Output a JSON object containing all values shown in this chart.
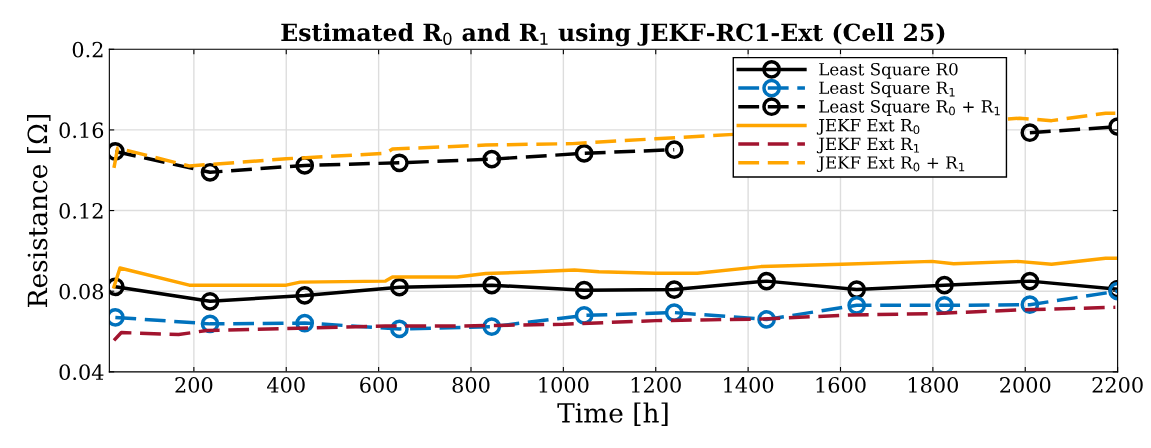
{
  "chart_data": {
    "type": "line",
    "title": "Estimated R$_{0}$ and R$_{1}$ using JEKF-RC1-Ext (Cell 25)",
    "xlabel": "Time [h]",
    "ylabel": "Resistance [Ω]",
    "xlim": [
      17,
      2200
    ],
    "xticks": [
      200,
      400,
      600,
      800,
      1000,
      1200,
      1400,
      1600,
      1800,
      2000,
      2200
    ],
    "ylim": [
      0.04,
      0.2
    ],
    "yticks": [
      0.04,
      0.08,
      0.12,
      0.16,
      0.2
    ],
    "grid": true,
    "legend": "top right",
    "series": [
      {
        "name": "Least Square R0",
        "color": "#000000",
        "marker": "circle",
        "line_style": "solid",
        "x": [
          30,
          235,
          440,
          645,
          845,
          1045,
          1240,
          1440,
          1635,
          1825,
          2010,
          2200
        ],
        "values": [
          0.0822,
          0.075,
          0.0779,
          0.082,
          0.083,
          0.0805,
          0.0808,
          0.085,
          0.0808,
          0.083,
          0.085,
          0.081
        ]
      },
      {
        "name": "Least Square R$_{1}$",
        "color": "#0072bd",
        "marker": "circle",
        "line_style": "dashed",
        "x": [
          30,
          235,
          440,
          645,
          845,
          1045,
          1240,
          1440,
          1635,
          1825,
          2010,
          2200
        ],
        "values": [
          0.067,
          0.0638,
          0.0642,
          0.0613,
          0.0624,
          0.068,
          0.0694,
          0.066,
          0.073,
          0.073,
          0.0733,
          0.08
        ]
      },
      {
        "name": "Least Square R$_{0}$ + R$_{1}$",
        "color": "#000000",
        "marker": "circle",
        "line_style": "dashed",
        "x": [
          30,
          235,
          440,
          645,
          845,
          1045,
          1240,
          1440,
          1635,
          1825,
          2010,
          2200
        ],
        "values": [
          0.1493,
          0.139,
          0.1424,
          0.1437,
          0.1455,
          0.1484,
          0.1502,
          null,
          null,
          null,
          0.1586,
          0.1616
        ]
      },
      {
        "name": "JEKF Ext R$_{0}$",
        "color": "#ffa500",
        "marker": "none",
        "line_style": "solid",
        "x": [
          27,
          40,
          190,
          400,
          430,
          615,
          630,
          770,
          832,
          925,
          1024,
          1077,
          1200,
          1290,
          1428,
          1603,
          1798,
          1845,
          1984,
          2057,
          2174,
          2195
        ],
        "values": [
          0.0822,
          0.0915,
          0.083,
          0.083,
          0.0845,
          0.085,
          0.087,
          0.087,
          0.0888,
          0.0895,
          0.0905,
          0.0897,
          0.0889,
          0.0889,
          0.0922,
          0.0934,
          0.0948,
          0.0936,
          0.0948,
          0.0934,
          0.0963,
          0.0963
        ]
      },
      {
        "name": "JEKF Ext R$_{1}$",
        "color": "#a2142f",
        "marker": "none",
        "line_style": "dashed",
        "x": [
          27,
          43,
          167,
          228,
          460,
          615,
          770,
          1000,
          1200,
          1428,
          1620,
          1800,
          1995,
          2195
        ],
        "values": [
          0.0556,
          0.0595,
          0.0585,
          0.0605,
          0.0618,
          0.0627,
          0.0627,
          0.0636,
          0.0654,
          0.0662,
          0.0682,
          0.0689,
          0.0708,
          0.072
        ]
      },
      {
        "name": "JEKF Ext R$_{0}$ + R$_{1}$",
        "color": "#ffa500",
        "marker": "none",
        "line_style": "dashed",
        "x": [
          27,
          35,
          190,
          400,
          615,
          630,
          832,
          1020,
          1200,
          1988,
          2057,
          2174,
          2195
        ],
        "values": [
          0.1412,
          0.151,
          0.1421,
          0.1457,
          0.1484,
          0.1505,
          0.1525,
          0.1532,
          0.1556,
          0.1658,
          0.1646,
          0.1683,
          0.1683
        ]
      }
    ]
  }
}
